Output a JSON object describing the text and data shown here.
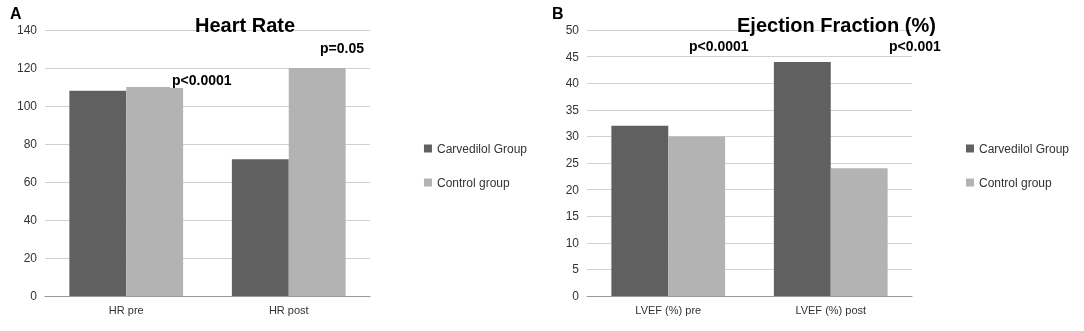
{
  "chart_data": [
    {
      "type": "bar",
      "title": "Heart Rate",
      "categories": [
        "HR pre",
        "HR post"
      ],
      "series": [
        {
          "name": "Carvedilol Group",
          "color": "#606060",
          "values": [
            108,
            72
          ]
        },
        {
          "name": "Control group",
          "color": "#b3b3b3",
          "values": [
            110,
            120
          ]
        }
      ],
      "ylim": [
        0,
        140
      ],
      "yticks": [
        0,
        20,
        40,
        60,
        80,
        100,
        120,
        140
      ],
      "grid": "y",
      "legend": "right",
      "annotations": [
        "A",
        "p<0.0001",
        "p=0.05"
      ]
    },
    {
      "type": "bar",
      "title": "Ejection Fraction (%)",
      "categories": [
        "LVEF (%) pre",
        "LVEF (%) post"
      ],
      "series": [
        {
          "name": "Carvedilol Group",
          "color": "#606060",
          "values": [
            32,
            44
          ]
        },
        {
          "name": "Control group",
          "color": "#b3b3b3",
          "values": [
            30,
            24
          ]
        }
      ],
      "ylim": [
        0,
        50
      ],
      "yticks": [
        0,
        5,
        10,
        15,
        20,
        25,
        30,
        35,
        40,
        45,
        50
      ],
      "grid": "y",
      "legend": "right",
      "annotations": [
        "B",
        "p<0.0001",
        "p<0.001"
      ]
    }
  ]
}
